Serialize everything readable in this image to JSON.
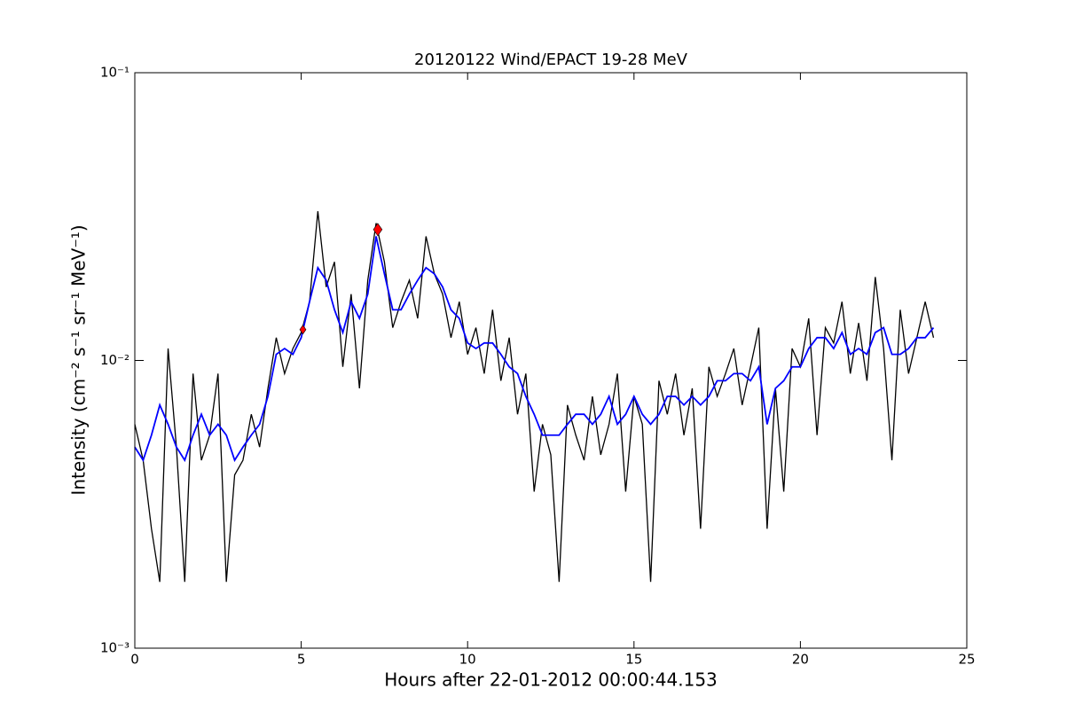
{
  "chart_data": {
    "type": "line",
    "title": "20120122 Wind/EPACT 19-28 MeV",
    "x_label": "Hours after 22-01-2012 00:00:44.153",
    "y_label": "Intensity (cm⁻² s⁻¹ sr⁻¹ MeV⁻¹)",
    "x": [
      0,
      0.25,
      0.5,
      0.75,
      1,
      1.25,
      1.5,
      1.75,
      2,
      2.25,
      2.5,
      2.75,
      3,
      3.25,
      3.5,
      3.75,
      4,
      4.25,
      4.5,
      4.75,
      5,
      5.25,
      5.5,
      5.75,
      6,
      6.25,
      6.5,
      6.75,
      7,
      7.25,
      7.5,
      7.75,
      8,
      8.25,
      8.5,
      8.75,
      9,
      9.25,
      9.5,
      9.75,
      10,
      10.25,
      10.5,
      10.75,
      11,
      11.25,
      11.5,
      11.75,
      12,
      12.25,
      12.5,
      12.75,
      13,
      13.25,
      13.5,
      13.75,
      14,
      14.25,
      14.5,
      14.75,
      15,
      15.25,
      15.5,
      15.75,
      16,
      16.25,
      16.5,
      16.75,
      17,
      17.25,
      17.5,
      17.75,
      18,
      18.25,
      18.5,
      18.75,
      19,
      19.25,
      19.5,
      19.75,
      20,
      20.25,
      20.5,
      20.75,
      21,
      21.25,
      21.5,
      21.75,
      22,
      22.25,
      22.5,
      22.75,
      23,
      23.25,
      23.5,
      23.75,
      24
    ],
    "series": [
      {
        "color": "#000000",
        "values": [
          0.006,
          0.0045,
          0.0026,
          0.0017,
          0.011,
          0.005,
          0.0017,
          0.009,
          0.0045,
          0.0055,
          0.009,
          0.0017,
          0.004,
          0.0045,
          0.0065,
          0.005,
          0.008,
          0.012,
          0.009,
          0.011,
          0.0125,
          0.016,
          0.033,
          0.018,
          0.022,
          0.0095,
          0.017,
          0.008,
          0.019,
          0.03,
          0.022,
          0.013,
          0.016,
          0.019,
          0.014,
          0.027,
          0.02,
          0.017,
          0.012,
          0.016,
          0.0105,
          0.013,
          0.009,
          0.015,
          0.0085,
          0.012,
          0.0065,
          0.009,
          0.0035,
          0.006,
          0.0047,
          0.0017,
          0.007,
          0.0055,
          0.0045,
          0.0075,
          0.0047,
          0.006,
          0.009,
          0.0035,
          0.0075,
          0.006,
          0.0017,
          0.0085,
          0.0065,
          0.009,
          0.0055,
          0.008,
          0.0026,
          0.0095,
          0.0075,
          0.009,
          0.011,
          0.007,
          0.0095,
          0.013,
          0.0026,
          0.008,
          0.0035,
          0.011,
          0.0095,
          0.014,
          0.0055,
          0.013,
          0.0115,
          0.016,
          0.009,
          0.0135,
          0.0085,
          0.0195,
          0.011,
          0.0045,
          0.015,
          0.009,
          0.012,
          0.016,
          0.012
        ]
      },
      {
        "color": "#0000ff",
        "values": [
          0.005,
          0.0045,
          0.0055,
          0.007,
          0.006,
          0.005,
          0.0045,
          0.0055,
          0.0065,
          0.0055,
          0.006,
          0.0055,
          0.0045,
          0.005,
          0.0055,
          0.006,
          0.0075,
          0.0105,
          0.011,
          0.0105,
          0.012,
          0.016,
          0.021,
          0.019,
          0.015,
          0.0125,
          0.016,
          0.014,
          0.017,
          0.027,
          0.02,
          0.015,
          0.015,
          0.017,
          0.019,
          0.021,
          0.02,
          0.018,
          0.015,
          0.014,
          0.0115,
          0.011,
          0.0115,
          0.0115,
          0.0105,
          0.0095,
          0.009,
          0.0075,
          0.0065,
          0.0055,
          0.0055,
          0.0055,
          0.006,
          0.0065,
          0.0065,
          0.006,
          0.0065,
          0.0075,
          0.006,
          0.0065,
          0.0075,
          0.0065,
          0.006,
          0.0065,
          0.0075,
          0.0075,
          0.007,
          0.0075,
          0.007,
          0.0075,
          0.0085,
          0.0085,
          0.009,
          0.009,
          0.0085,
          0.0095,
          0.006,
          0.008,
          0.0085,
          0.0095,
          0.0095,
          0.011,
          0.012,
          0.012,
          0.011,
          0.0125,
          0.0105,
          0.011,
          0.0105,
          0.0125,
          0.013,
          0.0105,
          0.0105,
          0.011,
          0.012,
          0.012,
          0.013
        ]
      }
    ],
    "markers": {
      "color": "#ff0000",
      "x": [
        5.05,
        7.3
      ],
      "values": [
        0.0128,
        0.0285
      ]
    },
    "xlim": [
      0,
      25
    ],
    "xticks": [
      0,
      5,
      10,
      15,
      20,
      25
    ],
    "ylim": [
      0.001,
      0.1
    ],
    "yticks": [
      {
        "value": 0.001,
        "label": "10⁻³"
      },
      {
        "value": 0.01,
        "label": "10⁻²"
      },
      {
        "value": 0.1,
        "label": "10⁻¹"
      }
    ],
    "log_y": true
  }
}
